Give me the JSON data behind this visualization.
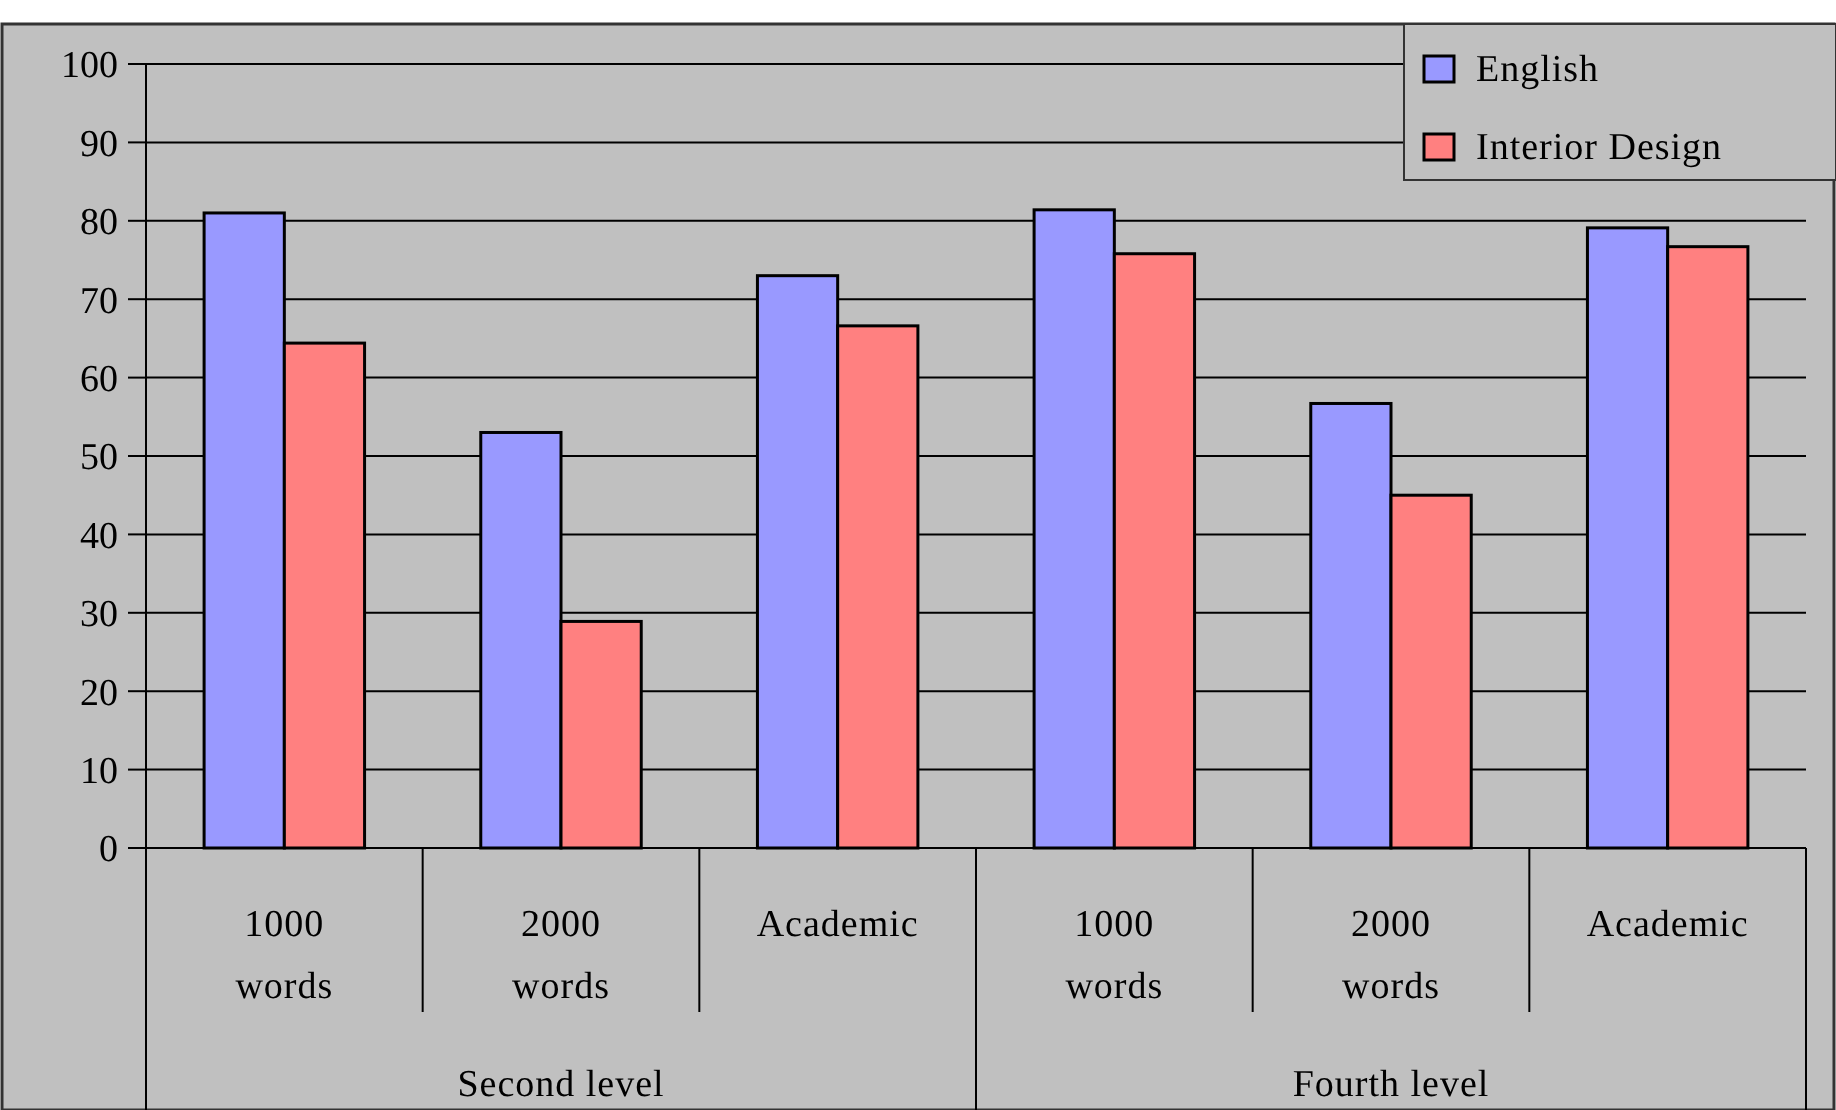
{
  "chart_data": {
    "type": "bar",
    "categories": [
      "1000 words",
      "2000 words",
      "Academic",
      "1000 words",
      "2000 words",
      "Academic"
    ],
    "series": [
      {
        "name": "English",
        "color": "#9999ff",
        "values": [
          81,
          53,
          73,
          81.4,
          56.7,
          79.1
        ]
      },
      {
        "name": "Interior Design",
        "color": "#ff8080",
        "values": [
          64.4,
          28.9,
          66.6,
          75.8,
          45,
          76.7
        ]
      }
    ],
    "ylim": [
      0,
      100
    ],
    "yticks": [
      0,
      10,
      20,
      30,
      40,
      50,
      60,
      70,
      80,
      90,
      100
    ],
    "grid": "y",
    "legend": "top right",
    "annotations": [
      "Second level",
      "Fourth level"
    ]
  }
}
